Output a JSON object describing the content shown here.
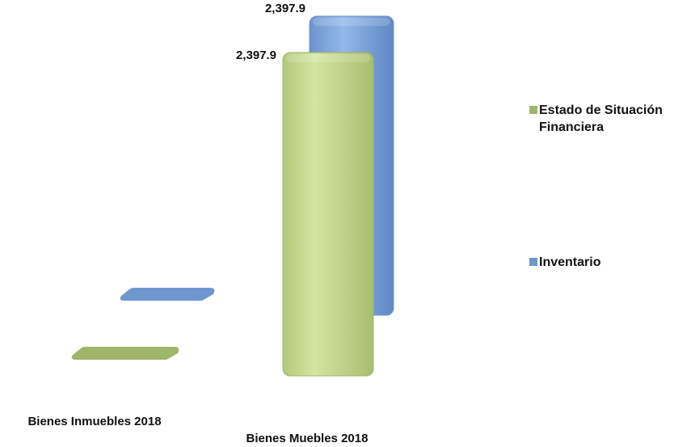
{
  "chart_data": {
    "type": "bar",
    "categories": [
      "Bienes Inmuebles 2018",
      "Bienes Muebles 2018"
    ],
    "series": [
      {
        "name": "Estado de Situación Financiera",
        "values": [
          0,
          2397.9
        ],
        "labels": [
          "",
          "2,397.9"
        ],
        "color": "#c9dc8e"
      },
      {
        "name": "Inventario",
        "values": [
          0,
          2397.9
        ],
        "labels": [
          "",
          "2,397.9"
        ],
        "color": "#7ea7dd"
      }
    ],
    "ylim": [
      0,
      2397.9
    ],
    "legend_position": "right",
    "three_d": true
  }
}
